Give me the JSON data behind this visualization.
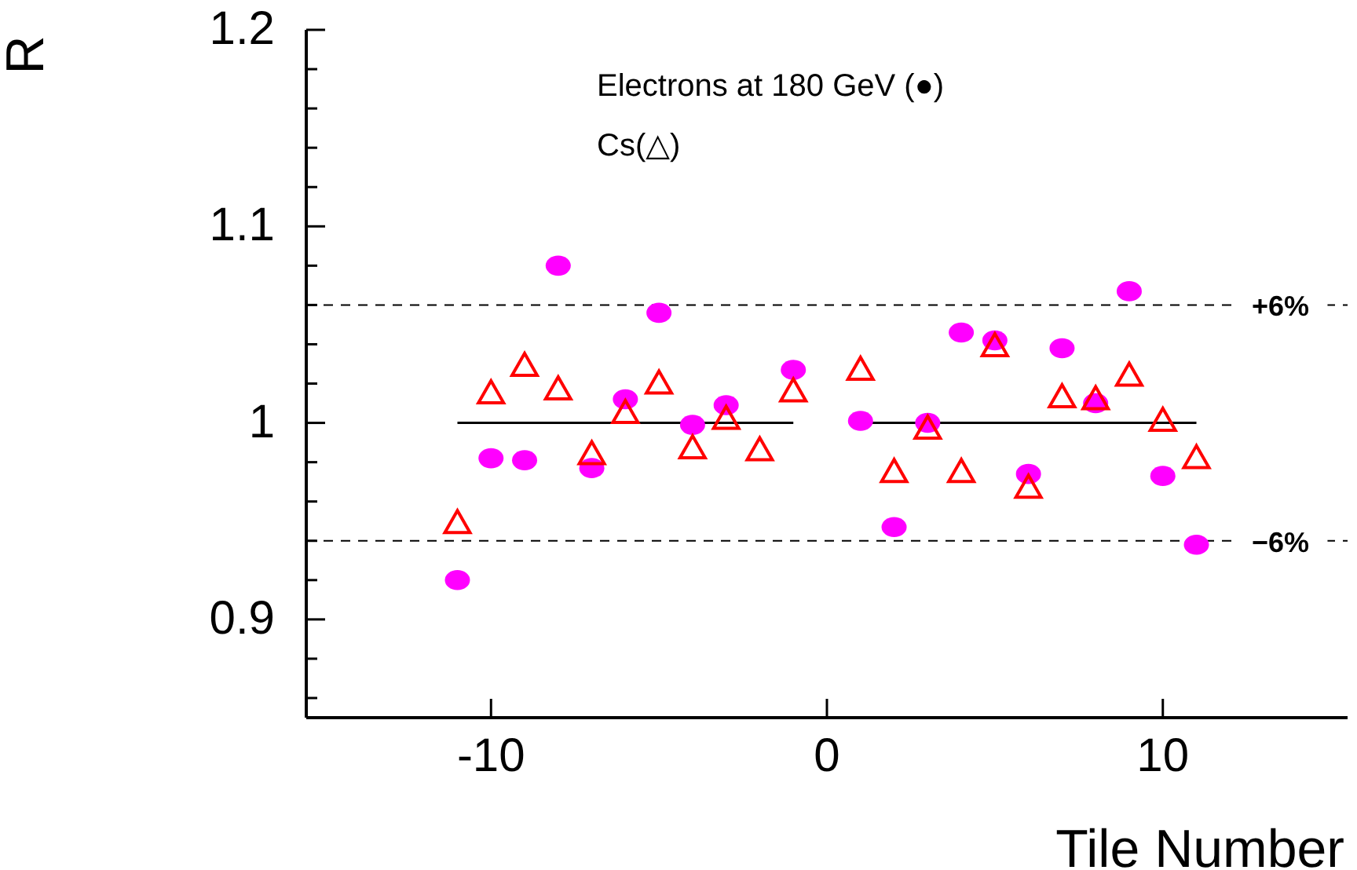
{
  "chart_data": {
    "type": "scatter",
    "xlabel": "Tile Number",
    "ylabel": "R",
    "xlim": [
      -15.5,
      15.5
    ],
    "xticks": [
      -10,
      0,
      10
    ],
    "ylim": [
      0.85,
      1.2
    ],
    "yticks": [
      {
        "value": 0.86,
        "label": null
      },
      {
        "value": 0.88,
        "label": null
      },
      0.9,
      {
        "value": 0.92,
        "label": null
      },
      {
        "value": 0.94,
        "label": null
      },
      {
        "value": 0.96,
        "label": null
      },
      {
        "value": 0.98,
        "label": null
      },
      1,
      {
        "value": 1.02,
        "label": null
      },
      {
        "value": 1.04,
        "label": null
      },
      {
        "value": 1.06,
        "label": null
      },
      {
        "value": 1.08,
        "label": null
      },
      1.1,
      {
        "value": 1.12,
        "label": null
      },
      {
        "value": 1.14,
        "label": null
      },
      {
        "value": 1.16,
        "label": null
      },
      {
        "value": 1.18,
        "label": null
      },
      1.2
    ],
    "grid": false,
    "annotations": [
      "Electrons at 180 GeV (●)",
      "Cs(△)",
      {
        "text": "+6%",
        "x": 13.5,
        "y": 1.06
      },
      {
        "text": "−6%",
        "x": 13.5,
        "y": 0.94
      }
    ],
    "series": [
      {
        "color": "#ff00ff",
        "marker": "circle",
        "x": [
          -11,
          -10,
          -9,
          -8,
          -7,
          -6,
          -5,
          -4,
          -3,
          -1,
          1,
          2,
          3,
          4,
          5,
          6,
          7,
          8,
          9,
          10,
          11
        ],
        "values": [
          0.92,
          0.982,
          0.981,
          1.08,
          0.977,
          1.012,
          1.056,
          0.999,
          1.009,
          1.027,
          1.001,
          0.947,
          1.0,
          1.046,
          1.042,
          0.974,
          1.038,
          1.01,
          1.067,
          0.973,
          0.938
        ]
      },
      {
        "color": "#ff0000",
        "marker": "triangle",
        "x": [
          -11,
          -10,
          -9,
          -8,
          -7,
          -6,
          -5,
          -4,
          -3,
          -2,
          -1,
          1,
          2,
          3,
          4,
          5,
          6,
          7,
          8,
          9,
          10,
          11
        ],
        "values": [
          0.949,
          1.015,
          1.029,
          1.017,
          0.984,
          1.005,
          1.02,
          0.987,
          1.002,
          0.986,
          1.016,
          1.027,
          0.975,
          0.997,
          0.975,
          1.039,
          0.967,
          1.013,
          1.012,
          1.024,
          1.001,
          0.982
        ]
      },
      {
        "type": "line",
        "color": "#000000",
        "marker": "none",
        "line_style": "solid",
        "x": [
          -11,
          -1
        ],
        "values": [
          1,
          1
        ]
      },
      {
        "type": "line",
        "color": "#000000",
        "marker": "none",
        "line_style": "solid",
        "x": [
          1,
          11
        ],
        "values": [
          1,
          1
        ]
      }
    ],
    "ref_lines": [
      {
        "axis": "y",
        "value": 1.06,
        "line_style": "dashed",
        "color": "#000000"
      },
      {
        "axis": "y",
        "value": 0.94,
        "line_style": "dashed",
        "color": "#000000"
      }
    ]
  }
}
